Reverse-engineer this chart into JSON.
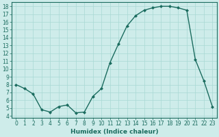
{
  "x": [
    0,
    1,
    2,
    3,
    4,
    5,
    6,
    7,
    8,
    9,
    10,
    11,
    12,
    13,
    14,
    15,
    16,
    17,
    18,
    19,
    20,
    21,
    22,
    23
  ],
  "y": [
    8.0,
    7.5,
    6.8,
    4.8,
    4.5,
    5.2,
    5.4,
    4.4,
    4.5,
    6.5,
    7.5,
    10.8,
    13.2,
    15.5,
    16.8,
    17.5,
    17.8,
    18.0,
    18.0,
    17.8,
    17.5,
    11.2,
    8.5,
    5.2
  ],
  "line_color": "#1a6b5e",
  "marker": "D",
  "marker_size": 2,
  "bg_color": "#ceecea",
  "grid_color": "#a8d8d4",
  "xlabel": "Humidex (Indice chaleur)",
  "ylim": [
    3.8,
    18.5
  ],
  "xlim": [
    -0.5,
    23.5
  ],
  "yticks": [
    4,
    5,
    6,
    7,
    8,
    9,
    10,
    11,
    12,
    13,
    14,
    15,
    16,
    17,
    18
  ],
  "xticks": [
    0,
    1,
    2,
    3,
    4,
    5,
    6,
    7,
    8,
    9,
    10,
    11,
    12,
    13,
    14,
    15,
    16,
    17,
    18,
    19,
    20,
    21,
    22,
    23
  ],
  "xlabel_fontsize": 6.5,
  "tick_fontsize": 5.5,
  "line_width": 1.0,
  "spine_color": "#1a6b5e"
}
